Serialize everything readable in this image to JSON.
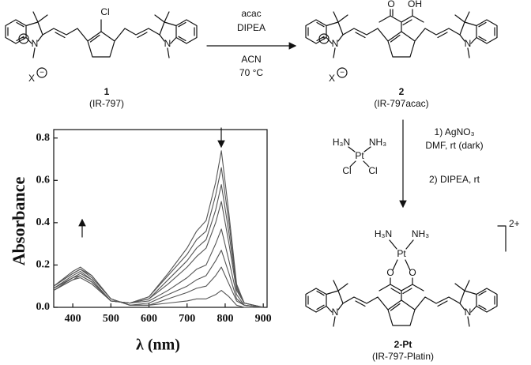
{
  "scheme": {
    "compound_1": {
      "atoms": [
        "Cl",
        "N",
        "+",
        "N",
        "X",
        "−"
      ],
      "number": "1",
      "name": "(IR-797)"
    },
    "step_1": {
      "reagents": [
        "acac",
        "DIPEA",
        "ACN",
        "70 °C"
      ]
    },
    "compound_2": {
      "atoms": [
        "O",
        "OH",
        "N",
        "+",
        "N",
        "X",
        "−"
      ],
      "number": "2",
      "name": "(IR-797acac)"
    },
    "cisplatin": [
      "H₃N",
      "NH₃",
      "Pt",
      "Cl",
      "Cl"
    ],
    "step_2": {
      "reagents": [
        "1) AgNO₃",
        "DMF, rt (dark)",
        "2) DIPEA, rt"
      ]
    },
    "compound_2pt": {
      "atoms": [
        "H₃N",
        "NH₃",
        "Pt",
        "O",
        "O",
        "N",
        "N"
      ],
      "charge": "2+",
      "number": "2-Pt",
      "name": "(IR-797-Platin)"
    }
  },
  "chart_data": {
    "type": "line",
    "xlabel": "λ (nm)",
    "ylabel": "Absorbance",
    "x": [
      350,
      400,
      420,
      450,
      500,
      550,
      600,
      650,
      700,
      725,
      750,
      775,
      790,
      810,
      830,
      850,
      900
    ],
    "series": [
      {
        "color": "#555555",
        "values": [
          0.08,
          0.13,
          0.14,
          0.11,
          0.03,
          0.02,
          0.05,
          0.16,
          0.28,
          0.36,
          0.41,
          0.59,
          0.74,
          0.44,
          0.11,
          0.02,
          0
        ]
      },
      {
        "color": "#555555",
        "values": [
          0.08,
          0.13,
          0.15,
          0.12,
          0.03,
          0.02,
          0.05,
          0.15,
          0.25,
          0.32,
          0.36,
          0.53,
          0.66,
          0.4,
          0.1,
          0.02,
          0
        ]
      },
      {
        "color": "#555555",
        "values": [
          0.08,
          0.14,
          0.15,
          0.12,
          0.03,
          0.02,
          0.04,
          0.13,
          0.22,
          0.28,
          0.32,
          0.46,
          0.58,
          0.35,
          0.09,
          0.02,
          0
        ]
      },
      {
        "color": "#555555",
        "values": [
          0.09,
          0.14,
          0.16,
          0.13,
          0.03,
          0.02,
          0.04,
          0.11,
          0.19,
          0.24,
          0.28,
          0.4,
          0.5,
          0.3,
          0.08,
          0.02,
          0
        ]
      },
      {
        "color": "#555555",
        "values": [
          0.09,
          0.15,
          0.17,
          0.13,
          0.03,
          0.02,
          0.03,
          0.08,
          0.14,
          0.18,
          0.2,
          0.3,
          0.37,
          0.22,
          0.06,
          0.01,
          0
        ]
      },
      {
        "color": "#555555",
        "values": [
          0.1,
          0.16,
          0.18,
          0.14,
          0.04,
          0.01,
          0.02,
          0.06,
          0.1,
          0.13,
          0.15,
          0.22,
          0.27,
          0.16,
          0.04,
          0.01,
          0
        ]
      },
      {
        "color": "#555555",
        "values": [
          0.1,
          0.16,
          0.18,
          0.15,
          0.04,
          0.01,
          0.01,
          0.04,
          0.07,
          0.09,
          0.1,
          0.15,
          0.19,
          0.11,
          0.03,
          0.01,
          0
        ]
      },
      {
        "color": "#555555",
        "values": [
          0.1,
          0.17,
          0.19,
          0.15,
          0.04,
          0.01,
          0.01,
          0.02,
          0.03,
          0.04,
          0.04,
          0.06,
          0.08,
          0.05,
          0.01,
          0,
          0
        ]
      }
    ],
    "xlim": [
      350,
      910
    ],
    "xticks": [
      400,
      500,
      600,
      700,
      800,
      900
    ],
    "ylim": [
      0,
      0.84
    ],
    "yticks": [
      {
        "value": 0,
        "label": "0.0"
      },
      0.2,
      0.4,
      0.6,
      0.8
    ]
  }
}
